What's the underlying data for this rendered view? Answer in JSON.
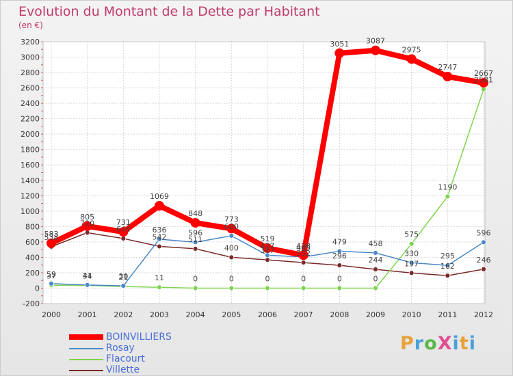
{
  "title": "Evolution du Montant de la Dette par Habitant",
  "subtitle": "(en €)",
  "logo": "ProXiti",
  "chart_data": {
    "type": "line",
    "title": "Evolution du Montant de la Dette par Habitant",
    "subtitle": "(en €)",
    "xlabel": "",
    "ylabel": "",
    "categories": [
      "2000",
      "2001",
      "2002",
      "2003",
      "2004",
      "2005",
      "2006",
      "2007",
      "2008",
      "2009",
      "2010",
      "2011",
      "2012"
    ],
    "ylim": [
      -200,
      3200
    ],
    "yticks": [
      -200,
      0,
      200,
      400,
      600,
      800,
      1000,
      1200,
      1400,
      1600,
      1800,
      2000,
      2200,
      2400,
      2600,
      2800,
      3000,
      3200
    ],
    "grid": true,
    "legend_position": "bottom-left",
    "series": [
      {
        "name": "BOINVILLIERS",
        "color": "#ff0000",
        "values": [
          583,
          805,
          731,
          1069,
          848,
          773,
          519,
          428,
          3051,
          3087,
          2975,
          2747,
          2667
        ]
      },
      {
        "name": "Rosay",
        "color": "#4a88c8",
        "values": [
          59,
          41,
          30,
          636,
          596,
          680,
          427,
          405,
          479,
          458,
          330,
          295,
          596
        ]
      },
      {
        "name": "Flacourt",
        "color": "#7fd44f",
        "values": [
          37,
          34,
          21,
          11,
          0,
          0,
          0,
          0,
          0,
          0,
          575,
          1190,
          2581
        ]
      },
      {
        "name": "Villette",
        "color": "#7a2a2a",
        "values": [
          538,
          720,
          644,
          542,
          511,
          400,
          367,
          332,
          296,
          244,
          197,
          162,
          246
        ]
      }
    ]
  }
}
